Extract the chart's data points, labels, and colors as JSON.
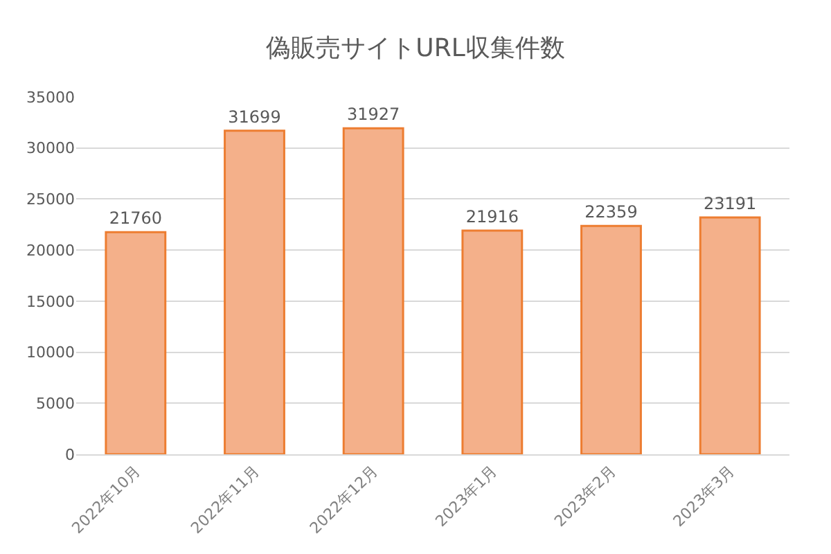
{
  "chart_data": {
    "type": "bar",
    "title": "偽販売サイトURL収集件数",
    "categories": [
      "2022年10月",
      "2022年11月",
      "2022年12月",
      "2023年1月",
      "2023年2月",
      "2023年3月"
    ],
    "values": [
      21760,
      31699,
      31927,
      21916,
      22359,
      23191
    ],
    "color": "#f4b08a",
    "ylim": [
      0,
      35000
    ],
    "yticks": [
      0,
      5000,
      10000,
      15000,
      20000,
      25000,
      30000,
      35000
    ],
    "grid": "y",
    "data_labels": true,
    "legend": false
  }
}
